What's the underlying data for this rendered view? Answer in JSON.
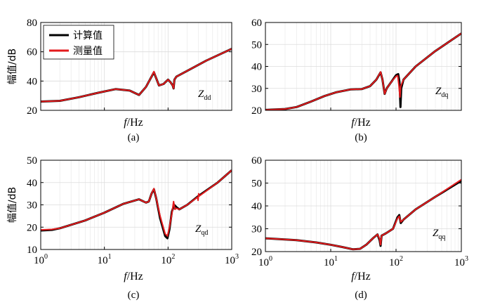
{
  "colors": {
    "calc": "#000000",
    "meas": "#e31a1c",
    "grid": "#dcdcdc"
  },
  "chart_data": [
    {
      "type": "line",
      "id": "a",
      "caption": "(a)",
      "xlabel_italic": "f",
      "xlabel_unit": "/Hz",
      "ylabel": "幅值/dB",
      "ylim": [
        20,
        80
      ],
      "yticks": [
        20,
        40,
        60,
        80
      ],
      "xlim": [
        1,
        1000
      ],
      "xscale": "log",
      "xticks_shown": false,
      "legend": [
        "计算值",
        "测量值"
      ],
      "legend_position": "top-left",
      "annotation": {
        "main": "Z",
        "sub": "dd"
      },
      "series": [
        {
          "name": "计算值",
          "points": [
            [
              1,
              26
            ],
            [
              2,
              26.5
            ],
            [
              4,
              29
            ],
            [
              8,
              32
            ],
            [
              15,
              34.5
            ],
            [
              25,
              33.5
            ],
            [
              35,
              30.5
            ],
            [
              45,
              36
            ],
            [
              55,
              43
            ],
            [
              60,
              46
            ],
            [
              65,
              42
            ],
            [
              72,
              37
            ],
            [
              85,
              38
            ],
            [
              100,
              41
            ],
            [
              110,
              39
            ],
            [
              118,
              37
            ],
            [
              122,
              35
            ],
            [
              126,
              41
            ],
            [
              135,
              43
            ],
            [
              200,
              47
            ],
            [
              400,
              54
            ],
            [
              1000,
              62
            ]
          ]
        },
        {
          "name": "测量值",
          "points": [
            [
              1,
              26
            ],
            [
              2,
              26.5
            ],
            [
              4,
              29
            ],
            [
              8,
              32
            ],
            [
              15,
              34.5
            ],
            [
              25,
              33.5
            ],
            [
              35,
              30.5
            ],
            [
              45,
              36
            ],
            [
              55,
              43
            ],
            [
              60,
              46.5
            ],
            [
              65,
              42
            ],
            [
              72,
              37
            ],
            [
              85,
              38
            ],
            [
              100,
              41
            ],
            [
              110,
              39
            ],
            [
              118,
              37
            ],
            [
              122,
              35
            ],
            [
              126,
              41
            ],
            [
              135,
              43
            ],
            [
              200,
              47
            ],
            [
              400,
              54
            ],
            [
              1000,
              62
            ]
          ]
        }
      ]
    },
    {
      "type": "line",
      "id": "b",
      "caption": "(b)",
      "xlabel_italic": "f",
      "xlabel_unit": "/Hz",
      "ylabel": "",
      "ylim": [
        20,
        60
      ],
      "yticks": [
        20,
        30,
        40,
        50,
        60
      ],
      "xlim": [
        1,
        1000
      ],
      "xscale": "log",
      "xticks_shown": false,
      "annotation": {
        "main": "Z",
        "sub": "dq"
      },
      "series": [
        {
          "name": "计算值",
          "points": [
            [
              1,
              20.2
            ],
            [
              2,
              20.6
            ],
            [
              3,
              21.5
            ],
            [
              5,
              24
            ],
            [
              8,
              26.5
            ],
            [
              12,
              28.2
            ],
            [
              20,
              29.5
            ],
            [
              30,
              29.7
            ],
            [
              40,
              31
            ],
            [
              50,
              34
            ],
            [
              58,
              37.3
            ],
            [
              62,
              34
            ],
            [
              67,
              27.5
            ],
            [
              72,
              30
            ],
            [
              85,
              33
            ],
            [
              100,
              36
            ],
            [
              108,
              36.5
            ],
            [
              113,
              33
            ],
            [
              117,
              21.5
            ],
            [
              120,
              30
            ],
            [
              130,
              34
            ],
            [
              200,
              40
            ],
            [
              400,
              47
            ],
            [
              1000,
              55
            ]
          ]
        },
        {
          "name": "测量值",
          "points": [
            [
              1,
              20.2
            ],
            [
              2,
              20.6
            ],
            [
              3,
              21.5
            ],
            [
              5,
              24
            ],
            [
              8,
              26.5
            ],
            [
              12,
              28.2
            ],
            [
              20,
              29.5
            ],
            [
              30,
              29.7
            ],
            [
              40,
              31
            ],
            [
              50,
              34
            ],
            [
              58,
              37.5
            ],
            [
              62,
              34
            ],
            [
              67,
              27.5
            ],
            [
              72,
              30
            ],
            [
              85,
              33
            ],
            [
              100,
              35.5
            ],
            [
              106,
              35.8
            ],
            [
              111,
              31
            ],
            [
              115,
              26
            ],
            [
              118,
              31
            ],
            [
              130,
              34
            ],
            [
              200,
              40
            ],
            [
              400,
              47
            ],
            [
              1000,
              55
            ]
          ]
        }
      ]
    },
    {
      "type": "line",
      "id": "c",
      "caption": "(c)",
      "xlabel_italic": "f",
      "xlabel_unit": "/Hz",
      "ylabel": "幅值/dB",
      "ylim": [
        10,
        50
      ],
      "yticks": [
        10,
        20,
        30,
        40,
        50
      ],
      "xlim": [
        1,
        1000
      ],
      "xscale": "log",
      "xticks": [
        "10^0",
        "10^1",
        "10^2",
        "10^3"
      ],
      "annotation": {
        "main": "Z",
        "sub": "qd"
      },
      "series": [
        {
          "name": "计算值",
          "points": [
            [
              1,
              18.5
            ],
            [
              1.5,
              18.8
            ],
            [
              2,
              19.5
            ],
            [
              5,
              23
            ],
            [
              10,
              26.5
            ],
            [
              20,
              30.5
            ],
            [
              35,
              32.5
            ],
            [
              45,
              31
            ],
            [
              50,
              31.5
            ],
            [
              55,
              35
            ],
            [
              60,
              37
            ],
            [
              65,
              33
            ],
            [
              75,
              24
            ],
            [
              90,
              16
            ],
            [
              98,
              15
            ],
            [
              105,
              19
            ],
            [
              115,
              27
            ],
            [
              125,
              30
            ],
            [
              135,
              29
            ],
            [
              150,
              28
            ],
            [
              200,
              30
            ],
            [
              300,
              34
            ],
            [
              600,
              40
            ],
            [
              1000,
              45.5
            ]
          ]
        },
        {
          "name": "测量值",
          "points": [
            [
              1,
              18.8
            ],
            [
              1.5,
              19
            ],
            [
              2,
              19.5
            ],
            [
              5,
              23
            ],
            [
              10,
              26.5
            ],
            [
              20,
              30.5
            ],
            [
              35,
              32.5
            ],
            [
              45,
              31
            ],
            [
              50,
              31.5
            ],
            [
              55,
              35
            ],
            [
              60,
              37.3
            ],
            [
              65,
              33
            ],
            [
              75,
              25
            ],
            [
              90,
              17
            ],
            [
              98,
              16
            ],
            [
              105,
              20
            ],
            [
              115,
              26
            ],
            [
              122,
              31.5
            ],
            [
              128,
              28
            ],
            [
              135,
              28.5
            ],
            [
              150,
              28
            ],
            [
              200,
              30
            ],
            [
              290,
              33.5
            ],
            [
              296,
              32
            ],
            [
              302,
              35
            ],
            [
              310,
              34
            ],
            [
              600,
              40
            ],
            [
              1000,
              45.5
            ]
          ]
        }
      ]
    },
    {
      "type": "line",
      "id": "d",
      "caption": "(d)",
      "xlabel_italic": "f",
      "xlabel_unit": "/Hz",
      "ylabel": "",
      "ylim": [
        20,
        60
      ],
      "yticks": [
        20,
        30,
        40,
        50,
        60
      ],
      "xlim": [
        1,
        1000
      ],
      "xscale": "log",
      "xticks": [
        "10^0",
        "10^1",
        "10^2",
        "10^3"
      ],
      "annotation": {
        "main": "Z",
        "sub": "qq"
      },
      "series": [
        {
          "name": "计算值",
          "points": [
            [
              1,
              25.8
            ],
            [
              3,
              25
            ],
            [
              6,
              24
            ],
            [
              10,
              23
            ],
            [
              15,
              22
            ],
            [
              22,
              21
            ],
            [
              28,
              21.2
            ],
            [
              35,
              23
            ],
            [
              45,
              26
            ],
            [
              52,
              27.5
            ],
            [
              56,
              25
            ],
            [
              58,
              22.5
            ],
            [
              60,
              27
            ],
            [
              70,
              28
            ],
            [
              90,
              30
            ],
            [
              105,
              35
            ],
            [
              112,
              36
            ],
            [
              118,
              32.5
            ],
            [
              130,
              34
            ],
            [
              200,
              38.5
            ],
            [
              400,
              44
            ],
            [
              1000,
              51
            ]
          ]
        },
        {
          "name": "测量值",
          "points": [
            [
              1,
              25.8
            ],
            [
              3,
              25
            ],
            [
              6,
              24
            ],
            [
              10,
              23
            ],
            [
              15,
              22
            ],
            [
              22,
              21
            ],
            [
              28,
              21.2
            ],
            [
              35,
              23
            ],
            [
              45,
              26
            ],
            [
              52,
              27.5
            ],
            [
              56,
              25.5
            ],
            [
              58,
              23
            ],
            [
              60,
              27
            ],
            [
              70,
              28
            ],
            [
              90,
              30
            ],
            [
              105,
              34.5
            ],
            [
              112,
              35.5
            ],
            [
              118,
              33
            ],
            [
              130,
              34
            ],
            [
              200,
              38.5
            ],
            [
              400,
              44
            ],
            [
              1000,
              51.5
            ]
          ]
        }
      ]
    }
  ]
}
